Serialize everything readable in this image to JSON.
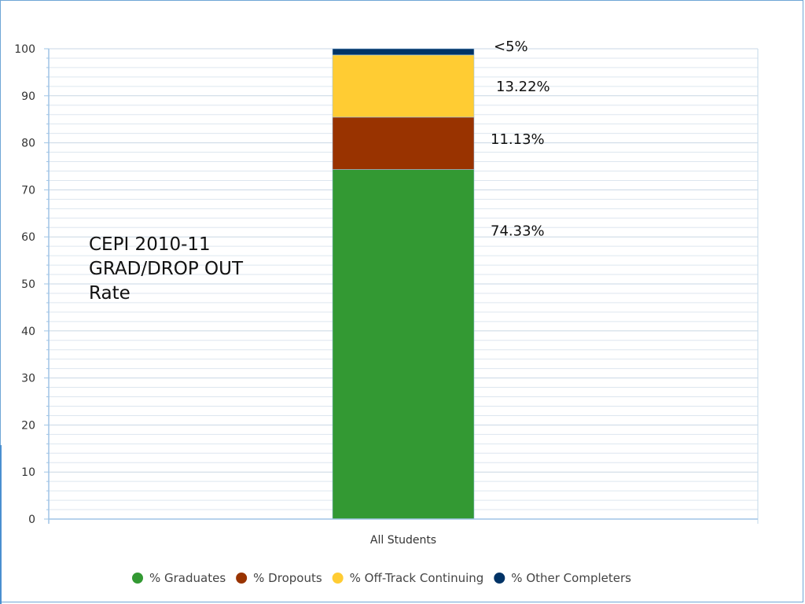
{
  "chart_data": {
    "type": "bar",
    "stacked": true,
    "categories": [
      "All Students"
    ],
    "series": [
      {
        "name": "% Graduates",
        "values": [
          74.33
        ],
        "color": "#339933",
        "label": "74.33%"
      },
      {
        "name": "% Dropouts",
        "values": [
          11.13
        ],
        "color": "#993300",
        "label": "11.13%"
      },
      {
        "name": "% Off-Track Continuing",
        "values": [
          13.22
        ],
        "color": "#ffcc33",
        "label": "13.22%"
      },
      {
        "name": "% Other Completers",
        "values": [
          1.32
        ],
        "color": "#003366",
        "label": "<5%"
      }
    ],
    "ylim": [
      0,
      100
    ],
    "yticks": [
      0,
      10,
      20,
      30,
      40,
      50,
      60,
      70,
      80,
      90,
      100
    ],
    "grid": true,
    "legend_position": "bottom",
    "annotation": "CEPI 2010-11\nGRAD/DROP OUT\nRate"
  }
}
